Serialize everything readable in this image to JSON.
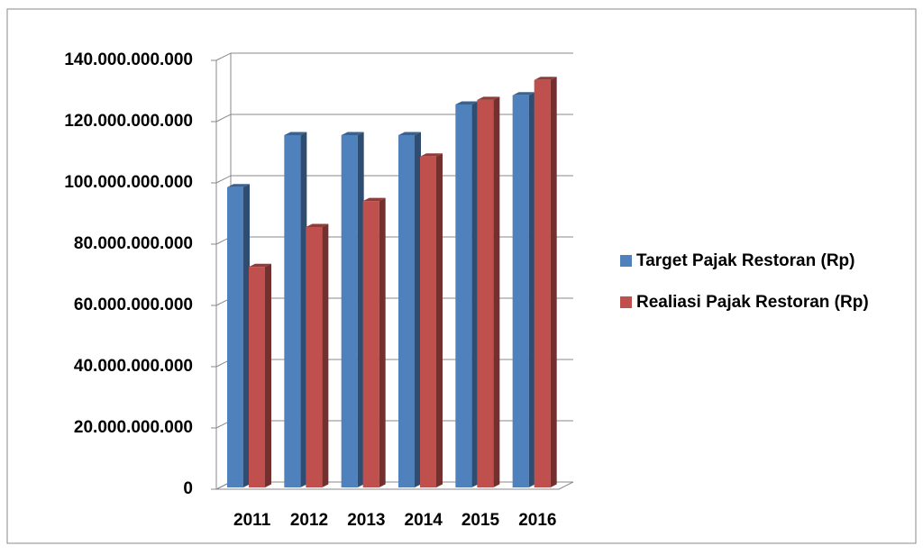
{
  "chart_data": {
    "type": "bar3d",
    "categories": [
      "2011",
      "2012",
      "2013",
      "2014",
      "2015",
      "2016"
    ],
    "series": [
      {
        "name": "Target Pajak Restoran (Rp)",
        "color": "#4f81bd",
        "values": [
          98000000000,
          115000000000,
          115000000000,
          115000000000,
          125000000000,
          128000000000
        ]
      },
      {
        "name": "Realiasi Pajak Restoran (Rp)",
        "color": "#c0504d",
        "values": [
          72000000000,
          85000000000,
          93500000000,
          108000000000,
          126500000000,
          133000000000
        ]
      }
    ],
    "ylim": [
      0,
      140000000000
    ],
    "yticks": [
      0,
      {
        "value": 20000000000,
        "label": "20.000.000.000"
      },
      {
        "value": 40000000000,
        "label": "40.000.000.000"
      },
      {
        "value": 60000000000,
        "label": "60.000.000.000"
      },
      {
        "value": 80000000000,
        "label": "80.000.000.000"
      },
      {
        "value": 100000000000,
        "label": "100.000.000.000"
      },
      {
        "value": 120000000000,
        "label": "120.000.000.000"
      },
      {
        "value": 140000000000,
        "label": "140.000.000.000"
      }
    ],
    "grid": true
  }
}
